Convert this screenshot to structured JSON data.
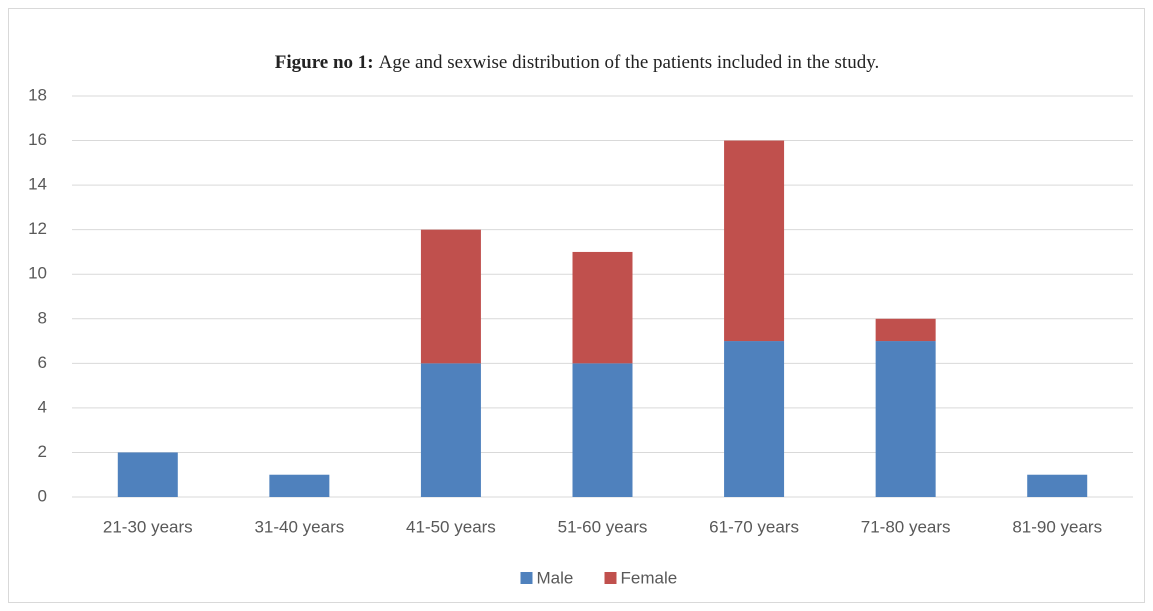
{
  "chart_data": {
    "type": "stacked-bar",
    "title_label": "Figure no 1:",
    "title": "Age and sexwise distribution of the patients included in the study.",
    "categories": [
      "21-30 years",
      "31-40 years",
      "41-50 years",
      "51-60 years",
      "61-70 years",
      "71-80 years",
      "81-90 years"
    ],
    "series": [
      {
        "name": "Male",
        "color": "#4f81bd",
        "values": [
          2,
          1,
          6,
          6,
          7,
          7,
          1
        ]
      },
      {
        "name": "Female",
        "color": "#c0504d",
        "values": [
          0,
          0,
          6,
          5,
          9,
          1,
          0
        ]
      }
    ],
    "ylim": [
      0,
      18
    ],
    "yticks": [
      0,
      2,
      4,
      6,
      8,
      10,
      12,
      14,
      16,
      18
    ],
    "grid": true,
    "legend": "bottom"
  }
}
